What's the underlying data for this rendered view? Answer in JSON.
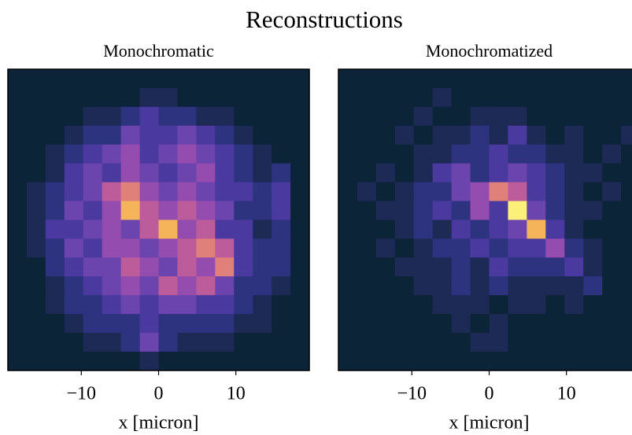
{
  "title": "Reconstructions",
  "chart_data": [
    {
      "type": "heatmap",
      "title": "Monochromatic",
      "xlabel": "x [micron]",
      "xlim": [
        -19.5,
        19.5
      ],
      "xticks": [
        {
          "value": -10,
          "label": "−10"
        },
        0,
        10
      ],
      "vmin": 0,
      "vmax": 9,
      "colormap": [
        "#0c2438",
        "#1c2a55",
        "#2e3380",
        "#4a3aa0",
        "#6c44ad",
        "#944cae",
        "#bc5c9a",
        "#e0807a",
        "#f5b45a",
        "#fdf07a"
      ],
      "values": [
        [
          0,
          0,
          0,
          0,
          0,
          0,
          0,
          0,
          0,
          0,
          0,
          0,
          0,
          0,
          0,
          0
        ],
        [
          0,
          0,
          0,
          0,
          0,
          0,
          0,
          1,
          1,
          0,
          0,
          0,
          0,
          0,
          0,
          0
        ],
        [
          0,
          0,
          0,
          0,
          1,
          1,
          2,
          3,
          2,
          2,
          1,
          1,
          0,
          0,
          0,
          0
        ],
        [
          0,
          0,
          0,
          1,
          2,
          2,
          4,
          3,
          3,
          4,
          3,
          2,
          1,
          0,
          0,
          0
        ],
        [
          0,
          0,
          1,
          2,
          3,
          4,
          5,
          3,
          4,
          5,
          4,
          3,
          2,
          1,
          0,
          0
        ],
        [
          0,
          0,
          1,
          3,
          4,
          3,
          5,
          4,
          3,
          4,
          5,
          3,
          2,
          1,
          2,
          0
        ],
        [
          0,
          1,
          2,
          3,
          4,
          6,
          7,
          5,
          4,
          5,
          4,
          3,
          3,
          2,
          3,
          0
        ],
        [
          0,
          1,
          2,
          4,
          3,
          5,
          8,
          6,
          5,
          6,
          5,
          4,
          2,
          2,
          3,
          0
        ],
        [
          0,
          1,
          3,
          3,
          4,
          5,
          4,
          6,
          8,
          5,
          6,
          3,
          3,
          1,
          2,
          0
        ],
        [
          0,
          1,
          2,
          4,
          3,
          5,
          5,
          4,
          5,
          6,
          7,
          6,
          3,
          2,
          2,
          0
        ],
        [
          0,
          0,
          2,
          3,
          4,
          4,
          6,
          5,
          4,
          6,
          5,
          7,
          3,
          2,
          2,
          0
        ],
        [
          0,
          0,
          1,
          2,
          3,
          4,
          5,
          4,
          6,
          5,
          6,
          4,
          2,
          2,
          1,
          0
        ],
        [
          0,
          0,
          1,
          2,
          2,
          3,
          4,
          3,
          4,
          4,
          3,
          3,
          2,
          1,
          0,
          0
        ],
        [
          0,
          0,
          0,
          1,
          2,
          2,
          2,
          3,
          2,
          2,
          2,
          2,
          1,
          1,
          0,
          0
        ],
        [
          0,
          0,
          0,
          0,
          1,
          1,
          2,
          4,
          2,
          1,
          1,
          1,
          0,
          0,
          0,
          0
        ],
        [
          0,
          0,
          0,
          0,
          0,
          0,
          0,
          1,
          0,
          0,
          0,
          0,
          0,
          0,
          0,
          0
        ]
      ]
    },
    {
      "type": "heatmap",
      "title": "Monochromatized",
      "xlabel": "x [micron]",
      "xlim": [
        -19.5,
        19.5
      ],
      "xticks": [
        {
          "value": -10,
          "label": "−10"
        },
        0,
        10
      ],
      "vmin": 0,
      "vmax": 9,
      "colormap": [
        "#0c2438",
        "#1c2a55",
        "#2e3380",
        "#4a3aa0",
        "#6c44ad",
        "#944cae",
        "#bc5c9a",
        "#e0807a",
        "#f5b45a",
        "#fdf07a"
      ],
      "values": [
        [
          0,
          0,
          0,
          0,
          0,
          0,
          0,
          0,
          0,
          0,
          0,
          0,
          0,
          0,
          0,
          0
        ],
        [
          0,
          0,
          0,
          0,
          0,
          1,
          0,
          0,
          0,
          0,
          0,
          0,
          0,
          0,
          0,
          0
        ],
        [
          0,
          0,
          0,
          0,
          1,
          0,
          0,
          1,
          1,
          1,
          0,
          0,
          0,
          0,
          0,
          0
        ],
        [
          0,
          0,
          0,
          1,
          0,
          1,
          1,
          2,
          1,
          3,
          1,
          0,
          1,
          0,
          0,
          1
        ],
        [
          0,
          0,
          0,
          0,
          1,
          1,
          2,
          2,
          3,
          2,
          2,
          1,
          1,
          0,
          1,
          0
        ],
        [
          0,
          0,
          1,
          0,
          1,
          3,
          4,
          2,
          3,
          4,
          3,
          2,
          1,
          1,
          0,
          0
        ],
        [
          0,
          1,
          0,
          1,
          2,
          2,
          4,
          5,
          7,
          6,
          3,
          2,
          1,
          0,
          1,
          0
        ],
        [
          0,
          0,
          1,
          1,
          2,
          3,
          2,
          5,
          3,
          9,
          4,
          2,
          1,
          1,
          0,
          0
        ],
        [
          0,
          0,
          0,
          1,
          2,
          1,
          3,
          2,
          3,
          4,
          8,
          3,
          1,
          0,
          0,
          0
        ],
        [
          0,
          0,
          1,
          0,
          1,
          2,
          2,
          3,
          2,
          3,
          3,
          5,
          2,
          1,
          0,
          0
        ],
        [
          0,
          0,
          0,
          1,
          1,
          1,
          2,
          1,
          3,
          2,
          2,
          2,
          3,
          1,
          0,
          0
        ],
        [
          0,
          0,
          0,
          0,
          1,
          1,
          2,
          1,
          2,
          1,
          1,
          1,
          1,
          2,
          0,
          0
        ],
        [
          0,
          0,
          0,
          0,
          0,
          1,
          1,
          1,
          0,
          1,
          1,
          0,
          1,
          0,
          0,
          0
        ],
        [
          0,
          0,
          0,
          0,
          0,
          0,
          1,
          0,
          1,
          0,
          0,
          0,
          0,
          0,
          0,
          0
        ],
        [
          0,
          0,
          0,
          0,
          0,
          0,
          0,
          1,
          1,
          0,
          0,
          0,
          0,
          0,
          0,
          0
        ],
        [
          0,
          0,
          0,
          0,
          0,
          0,
          0,
          0,
          0,
          0,
          0,
          0,
          0,
          0,
          0,
          0
        ]
      ]
    }
  ]
}
